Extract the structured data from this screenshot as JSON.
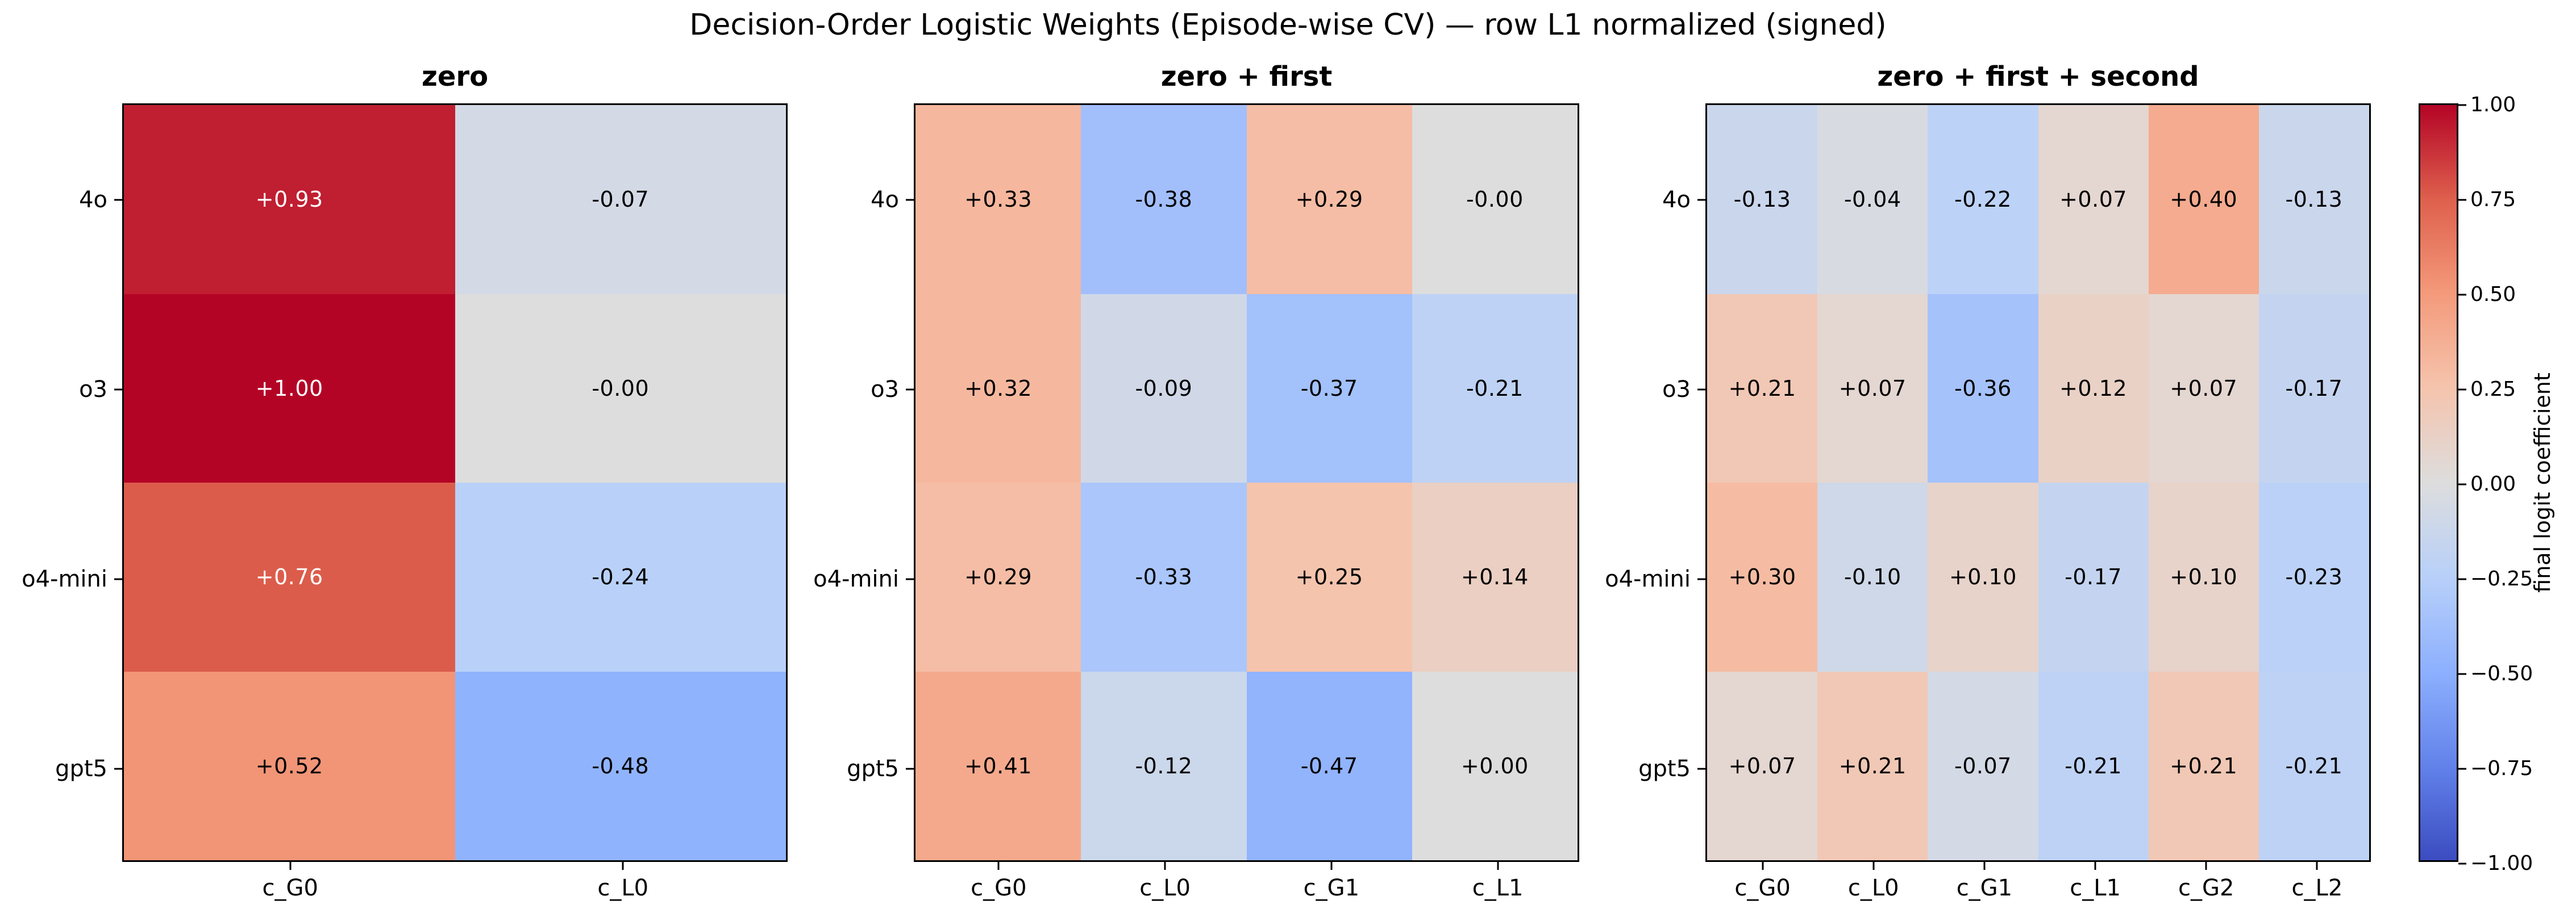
{
  "chart_data": {
    "type": "heatmap",
    "title": "Decision-Order Logistic Weights (Episode-wise CV) — row L1 normalized (signed)",
    "rows": [
      "4o",
      "o3",
      "o4-mini",
      "gpt5"
    ],
    "panels": [
      {
        "title": "zero",
        "columns": [
          "c_G0",
          "c_L0"
        ],
        "values": [
          [
            0.93,
            -0.07
          ],
          [
            1.0,
            0.0
          ],
          [
            0.76,
            -0.24
          ],
          [
            0.52,
            -0.48
          ]
        ],
        "labels": [
          [
            "+0.93",
            "-0.07"
          ],
          [
            "+1.00",
            "-0.00"
          ],
          [
            "+0.76",
            "-0.24"
          ],
          [
            "+0.52",
            "-0.48"
          ]
        ]
      },
      {
        "title": "zero + first",
        "columns": [
          "c_G0",
          "c_L0",
          "c_G1",
          "c_L1"
        ],
        "values": [
          [
            0.33,
            -0.38,
            0.29,
            0.0
          ],
          [
            0.32,
            -0.09,
            -0.37,
            -0.21
          ],
          [
            0.29,
            -0.33,
            0.25,
            0.14
          ],
          [
            0.41,
            -0.12,
            -0.47,
            0.0
          ]
        ],
        "labels": [
          [
            "+0.33",
            "-0.38",
            "+0.29",
            "-0.00"
          ],
          [
            "+0.32",
            "-0.09",
            "-0.37",
            "-0.21"
          ],
          [
            "+0.29",
            "-0.33",
            "+0.25",
            "+0.14"
          ],
          [
            "+0.41",
            "-0.12",
            "-0.47",
            "+0.00"
          ]
        ]
      },
      {
        "title": "zero + first + second",
        "columns": [
          "c_G0",
          "c_L0",
          "c_G1",
          "c_L1",
          "c_G2",
          "c_L2"
        ],
        "values": [
          [
            -0.13,
            -0.04,
            -0.22,
            0.07,
            0.4,
            -0.13
          ],
          [
            0.21,
            0.07,
            -0.36,
            0.12,
            0.07,
            -0.17
          ],
          [
            0.3,
            -0.1,
            0.1,
            -0.17,
            0.1,
            -0.23
          ],
          [
            0.07,
            0.21,
            -0.07,
            -0.21,
            0.21,
            -0.21
          ]
        ],
        "labels": [
          [
            "-0.13",
            "-0.04",
            "-0.22",
            "+0.07",
            "+0.40",
            "-0.13"
          ],
          [
            "+0.21",
            "+0.07",
            "-0.36",
            "+0.12",
            "+0.07",
            "-0.17"
          ],
          [
            "+0.30",
            "-0.10",
            "+0.10",
            "-0.17",
            "+0.10",
            "-0.23"
          ],
          [
            "+0.07",
            "+0.21",
            "-0.07",
            "-0.21",
            "+0.21",
            "-0.21"
          ]
        ]
      }
    ],
    "colorbar": {
      "label": "final logit coefficient",
      "tick_labels": [
        "1.00",
        "0.75",
        "0.50",
        "0.25",
        "0.00",
        "−0.25",
        "−0.50",
        "−0.75",
        "−1.00"
      ],
      "tick_values": [
        1.0,
        0.75,
        0.5,
        0.25,
        0.0,
        -0.25,
        -0.5,
        -0.75,
        -1.0
      ],
      "vmin": -1.0,
      "vmax": 1.0
    },
    "colormap": {
      "name": "coolwarm",
      "stops": [
        [
          0.0,
          [
            59,
            76,
            192
          ]
        ],
        [
          0.125,
          [
            98,
            130,
            234
          ]
        ],
        [
          0.25,
          [
            141,
            176,
            254
          ]
        ],
        [
          0.375,
          [
            184,
            208,
            249
          ]
        ],
        [
          0.5,
          [
            221,
            221,
            221
          ]
        ],
        [
          0.625,
          [
            245,
            196,
            173
          ]
        ],
        [
          0.75,
          [
            244,
            154,
            123
          ]
        ],
        [
          0.875,
          [
            222,
            96,
            77
          ]
        ],
        [
          1.0,
          [
            180,
            4,
            38
          ]
        ]
      ]
    }
  }
}
